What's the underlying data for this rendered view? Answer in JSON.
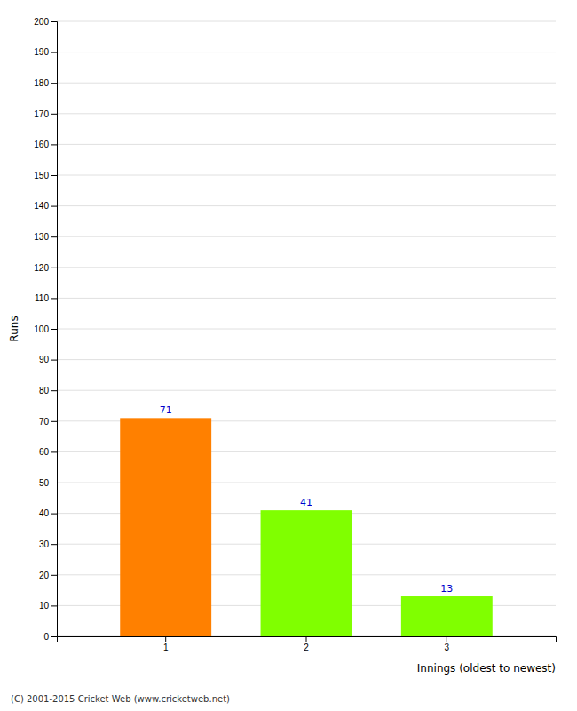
{
  "chart_data": {
    "type": "bar",
    "categories": [
      "1",
      "2",
      "3"
    ],
    "values": [
      71,
      41,
      13
    ],
    "colors": [
      "#FF8000",
      "#80FF00",
      "#80FF00"
    ],
    "ylabel": "Runs",
    "xlabel": "Innings (oldest to newest)",
    "ylim": [
      0,
      200
    ],
    "yticks": [
      0,
      10,
      20,
      30,
      40,
      50,
      60,
      70,
      80,
      90,
      100,
      110,
      120,
      130,
      140,
      150,
      160,
      170,
      180,
      190,
      200
    ],
    "grid": true,
    "data_labels": true,
    "annotations": [
      "(C) 2001-2015 Cricket Web (www.cricketweb.net)"
    ]
  }
}
